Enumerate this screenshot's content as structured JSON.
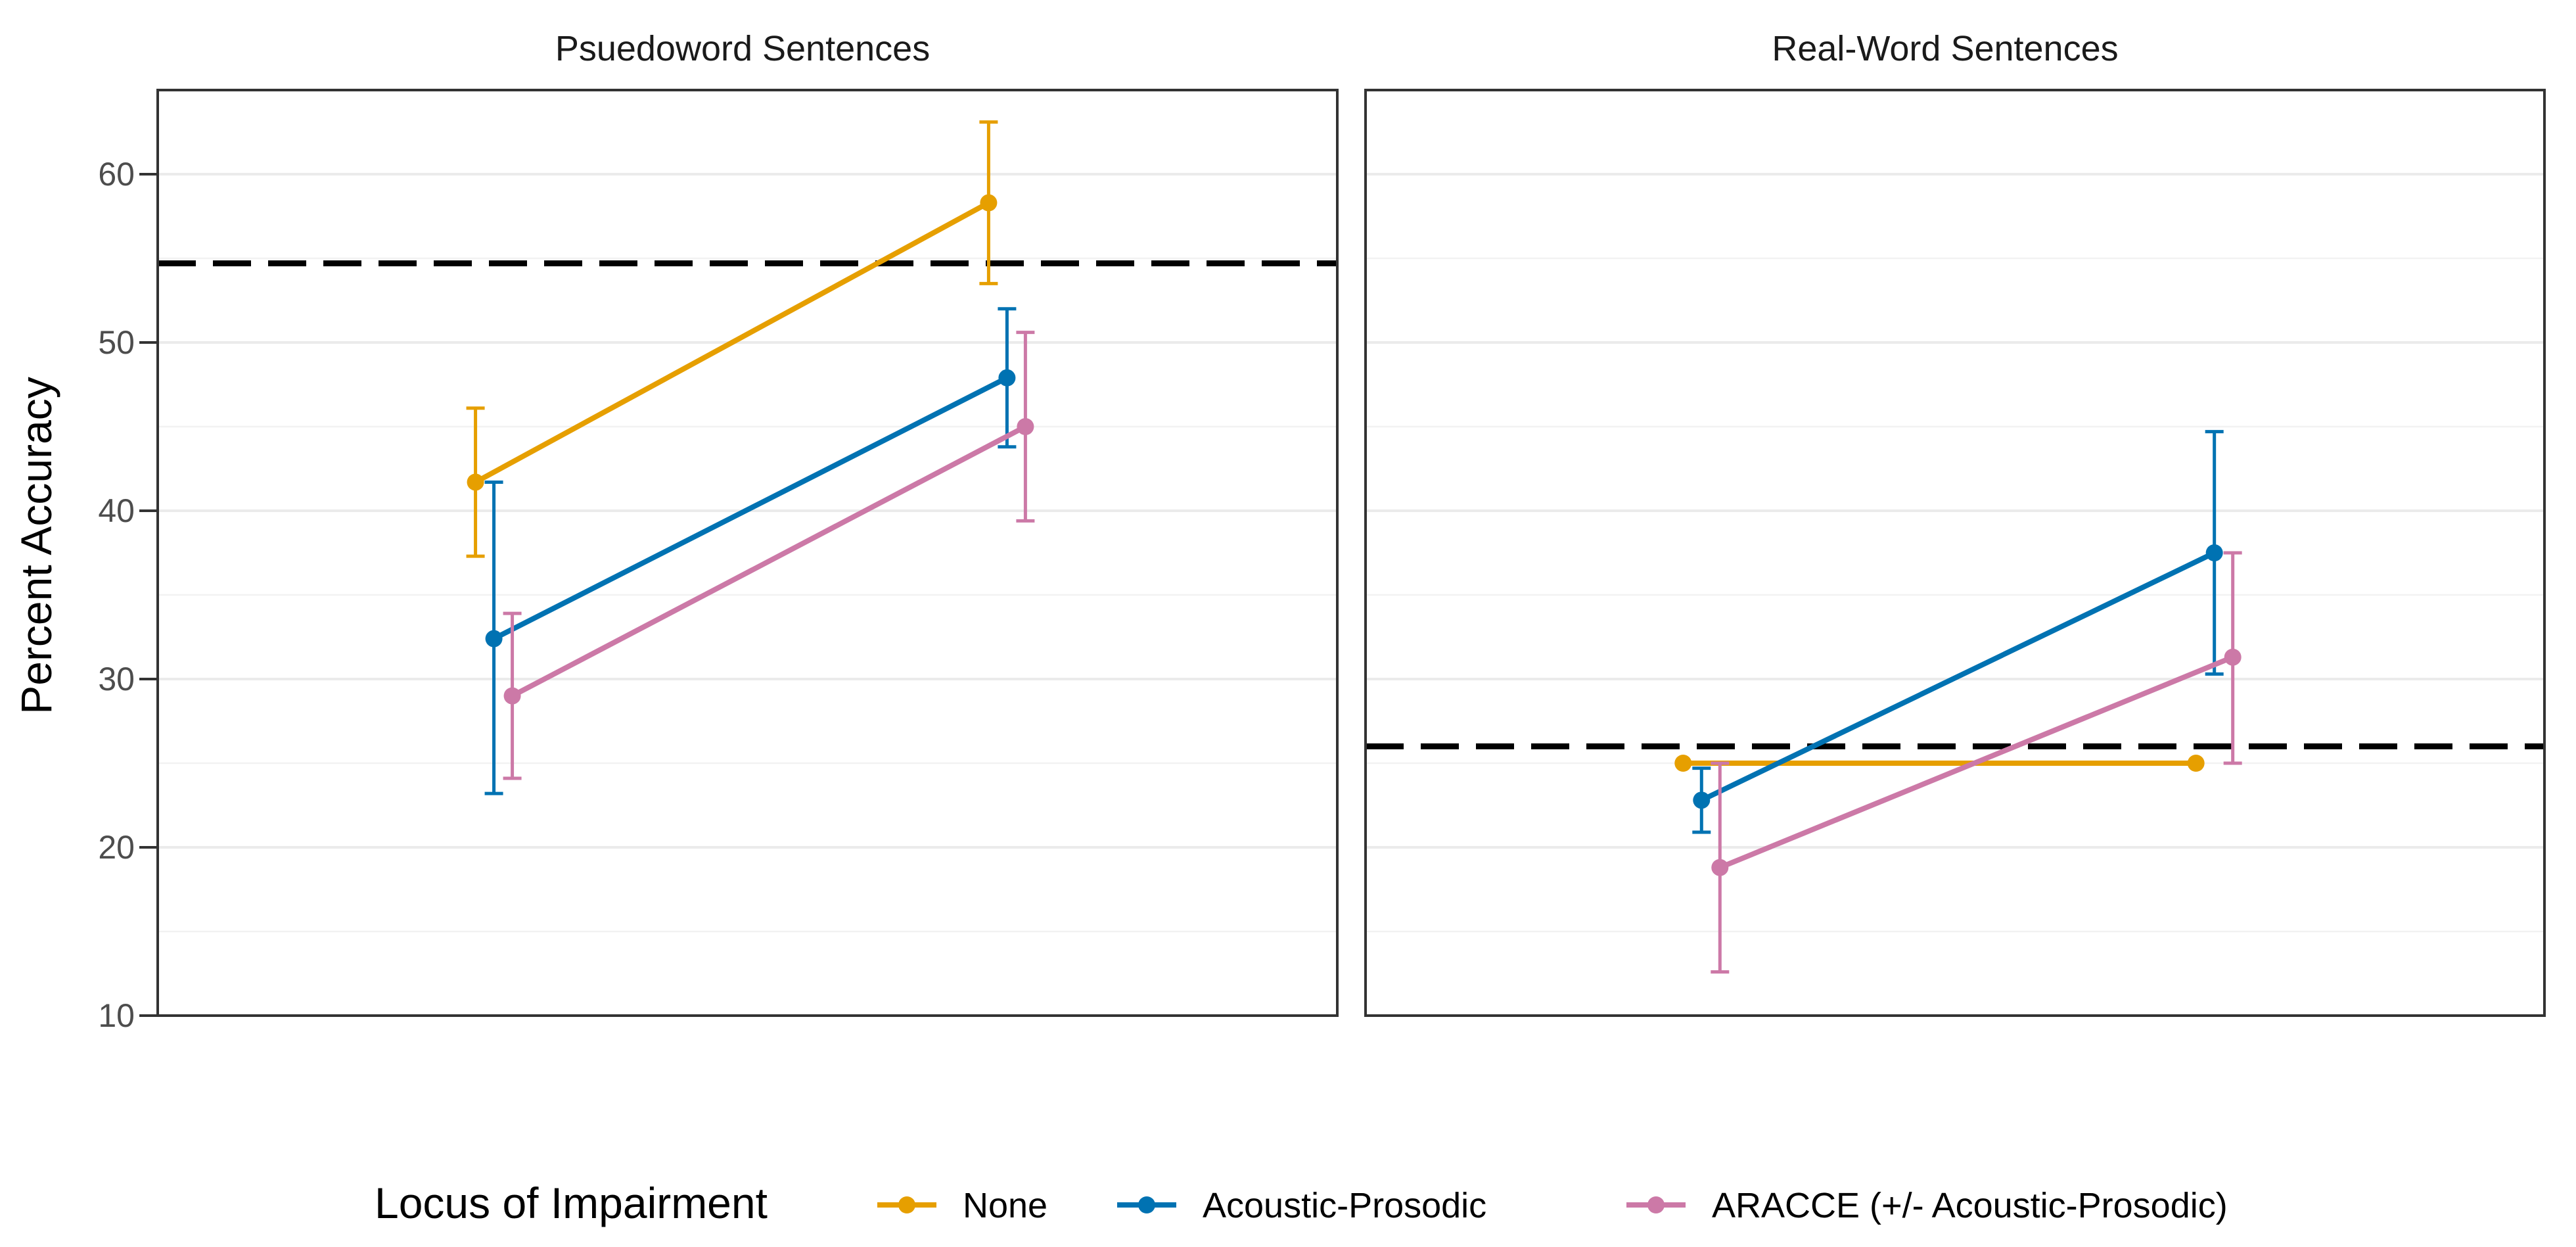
{
  "chart_data": {
    "type": "line",
    "ylabel": "Percent Accuracy",
    "ylim": [
      10,
      65
    ],
    "yticks": [
      "10",
      "20",
      "30",
      "40",
      "50",
      "60"
    ],
    "grid": true,
    "legend": {
      "title": "Locus of Impairment",
      "position": "bottom"
    },
    "panels": [
      {
        "title": "Psuedoword Sentences",
        "chance_line": 54.7,
        "series": [
          {
            "name": "None",
            "color": "#E69F00",
            "points": [
              {
                "x": 1,
                "y": 41.7,
                "lo": 37.3,
                "hi": 46.1
              },
              {
                "x": 2,
                "y": 58.3,
                "lo": 53.5,
                "hi": 63.1
              }
            ]
          },
          {
            "name": "Acoustic-Prosodic",
            "color": "#0072B2",
            "points": [
              {
                "x": 1,
                "y": 32.4,
                "lo": 23.2,
                "hi": 41.7
              },
              {
                "x": 2,
                "y": 47.9,
                "lo": 43.8,
                "hi": 52.0
              }
            ]
          },
          {
            "name": "ARACCE (+/- Acoustic-Prosodic)",
            "color": "#CC79A7",
            "points": [
              {
                "x": 1,
                "y": 29.0,
                "lo": 24.1,
                "hi": 33.9
              },
              {
                "x": 2,
                "y": 45.0,
                "lo": 39.4,
                "hi": 50.6
              }
            ]
          }
        ]
      },
      {
        "title": "Real-Word Sentences",
        "chance_line": 26.0,
        "series": [
          {
            "name": "None",
            "color": "#E69F00",
            "points": [
              {
                "x": 1,
                "y": 25.0,
                "lo": 25.0,
                "hi": 25.0
              },
              {
                "x": 2,
                "y": 25.0,
                "lo": 25.0,
                "hi": 25.0
              }
            ]
          },
          {
            "name": "Acoustic-Prosodic",
            "color": "#0072B2",
            "points": [
              {
                "x": 1,
                "y": 22.8,
                "lo": 20.9,
                "hi": 24.7
              },
              {
                "x": 2,
                "y": 37.5,
                "lo": 30.3,
                "hi": 44.7
              }
            ]
          },
          {
            "name": "ARACCE (+/- Acoustic-Prosodic)",
            "color": "#CC79A7",
            "points": [
              {
                "x": 1,
                "y": 18.8,
                "lo": 12.6,
                "hi": 25.0
              },
              {
                "x": 2,
                "y": 31.3,
                "lo": 25.0,
                "hi": 37.5
              }
            ]
          }
        ]
      }
    ]
  }
}
